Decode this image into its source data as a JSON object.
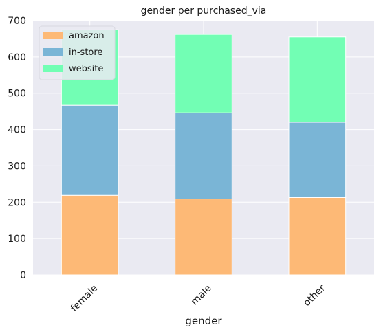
{
  "chart_data": {
    "type": "bar",
    "stacked": true,
    "title": "gender per purchased_via",
    "xlabel": "gender",
    "ylabel": "",
    "categories": [
      "female",
      "male",
      "other"
    ],
    "series": [
      {
        "name": "amazon",
        "values": [
          219,
          209,
          213
        ],
        "color": "#fdb976"
      },
      {
        "name": "in-store",
        "values": [
          248,
          237,
          207
        ],
        "color": "#7ab5d6"
      },
      {
        "name": "website",
        "values": [
          208,
          216,
          235
        ],
        "color": "#72feb4"
      }
    ],
    "ylim": [
      0,
      700
    ],
    "yticks": [
      0,
      100,
      200,
      300,
      400,
      500,
      600,
      700
    ],
    "grid": true,
    "legend_position": "top-left",
    "background": "#eaeaf2"
  }
}
